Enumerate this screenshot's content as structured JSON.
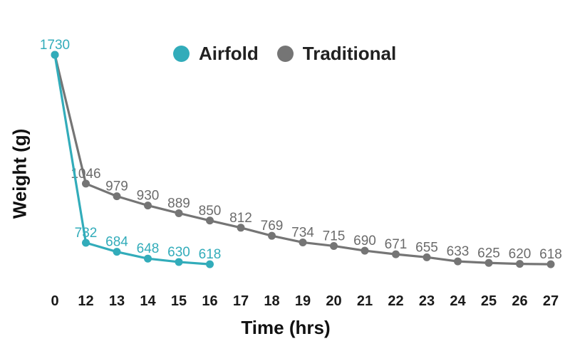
{
  "chart_data": {
    "type": "line",
    "title": "",
    "xlabel": "Time (hrs)",
    "ylabel": "Weight (g)",
    "categories": [
      "0",
      "12",
      "13",
      "14",
      "15",
      "16",
      "17",
      "18",
      "19",
      "20",
      "21",
      "22",
      "23",
      "24",
      "25",
      "26",
      "27"
    ],
    "series": [
      {
        "name": "Airfold",
        "color": "#32ACBA",
        "label_color": "#32ACBA",
        "values": [
          1730,
          732,
          684,
          648,
          630,
          618
        ],
        "show_first_label": true
      },
      {
        "name": "Traditional",
        "color": "#757575",
        "label_color": "#6B6B6B",
        "values": [
          1730,
          1046,
          979,
          930,
          889,
          850,
          812,
          769,
          734,
          715,
          690,
          671,
          655,
          633,
          625,
          620,
          618
        ],
        "show_first_label": false
      }
    ],
    "ylim": [
      618,
      1730
    ],
    "grid": false,
    "legend_position": "top",
    "point_labels": true
  },
  "colors": {
    "background": "#FFFFFF",
    "tick_text": "#1A1A1A",
    "axis_title_text": "#111111",
    "legend_text": "#212121"
  }
}
